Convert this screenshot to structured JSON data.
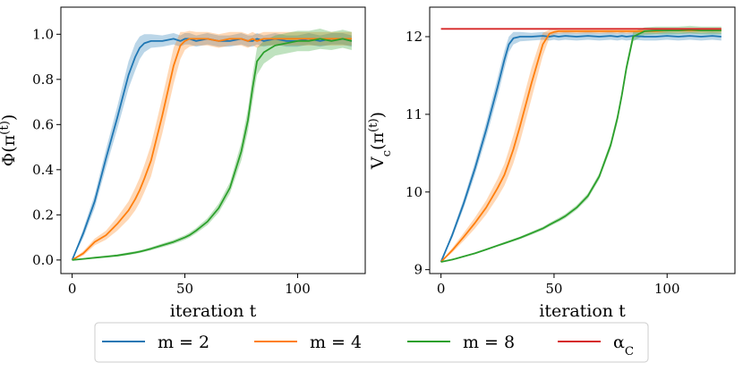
{
  "chart_data": [
    {
      "type": "line",
      "xlabel": "iteration t",
      "ylabel": "Φ(π^(t))",
      "xlim": [
        -5,
        130
      ],
      "ylim": [
        -0.06,
        1.12
      ],
      "xticks": [
        0,
        50,
        100
      ],
      "yticks": [
        0.0,
        0.2,
        0.4,
        0.6,
        0.8,
        1.0
      ],
      "ytick_labels": [
        "0.0",
        "0.2",
        "0.4",
        "0.6",
        "0.8",
        "1.0"
      ],
      "x": [
        0,
        5,
        10,
        15,
        20,
        25,
        28,
        30,
        32,
        35,
        40,
        45,
        48,
        50,
        52,
        55,
        60,
        65,
        70,
        75,
        78,
        80,
        82,
        85,
        90,
        95,
        100,
        105,
        110,
        115,
        120,
        124
      ],
      "series": [
        {
          "name": "m = 2",
          "color": "#1f77b4",
          "values": [
            0.0,
            0.12,
            0.26,
            0.45,
            0.63,
            0.82,
            0.9,
            0.94,
            0.96,
            0.97,
            0.97,
            0.98,
            0.97,
            0.98,
            0.98,
            0.97,
            0.98,
            0.97,
            0.97,
            0.98,
            0.97,
            0.97,
            0.98,
            0.97,
            0.98,
            0.97,
            0.97,
            0.98,
            0.97,
            0.98,
            0.98,
            0.97
          ],
          "band": [
            0.0,
            0.02,
            0.03,
            0.04,
            0.05,
            0.06,
            0.06,
            0.05,
            0.04,
            0.03,
            0.025,
            0.025,
            0.025,
            0.025,
            0.025,
            0.025,
            0.025,
            0.025,
            0.025,
            0.025,
            0.025,
            0.025,
            0.025,
            0.025,
            0.025,
            0.025,
            0.025,
            0.025,
            0.025,
            0.025,
            0.025,
            0.025
          ]
        },
        {
          "name": "m = 4",
          "color": "#ff7f0e",
          "values": [
            0.0,
            0.03,
            0.08,
            0.11,
            0.16,
            0.22,
            0.27,
            0.31,
            0.36,
            0.44,
            0.64,
            0.86,
            0.95,
            0.97,
            0.98,
            0.98,
            0.98,
            0.97,
            0.98,
            0.98,
            0.97,
            0.98,
            0.97,
            0.98,
            0.98,
            0.98,
            0.98,
            0.98,
            0.98,
            0.98,
            0.98,
            0.98
          ],
          "band": [
            0.0,
            0.01,
            0.015,
            0.02,
            0.03,
            0.04,
            0.05,
            0.055,
            0.06,
            0.07,
            0.08,
            0.08,
            0.06,
            0.04,
            0.035,
            0.03,
            0.03,
            0.03,
            0.03,
            0.03,
            0.03,
            0.03,
            0.03,
            0.03,
            0.03,
            0.03,
            0.03,
            0.03,
            0.03,
            0.03,
            0.03,
            0.03
          ]
        },
        {
          "name": "m = 8",
          "color": "#2ca02c",
          "values": [
            0.0,
            0.005,
            0.01,
            0.015,
            0.02,
            0.028,
            0.033,
            0.037,
            0.042,
            0.05,
            0.065,
            0.08,
            0.092,
            0.1,
            0.11,
            0.13,
            0.17,
            0.23,
            0.32,
            0.48,
            0.62,
            0.76,
            0.88,
            0.92,
            0.95,
            0.96,
            0.97,
            0.97,
            0.98,
            0.97,
            0.98,
            0.97
          ],
          "band": [
            0.0,
            0.003,
            0.004,
            0.005,
            0.005,
            0.006,
            0.006,
            0.006,
            0.006,
            0.007,
            0.008,
            0.009,
            0.01,
            0.01,
            0.011,
            0.012,
            0.015,
            0.02,
            0.025,
            0.04,
            0.05,
            0.06,
            0.06,
            0.05,
            0.045,
            0.045,
            0.045,
            0.045,
            0.045,
            0.04,
            0.04,
            0.04
          ]
        }
      ]
    },
    {
      "type": "line",
      "xlabel": "iteration t",
      "ylabel": "V_c(π^(t))",
      "xlim": [
        -5,
        130
      ],
      "ylim": [
        8.95,
        12.38
      ],
      "xticks": [
        0,
        50,
        100
      ],
      "yticks": [
        9,
        10,
        11,
        12
      ],
      "ytick_labels": [
        "9",
        "10",
        "11",
        "12"
      ],
      "x": [
        0,
        5,
        10,
        15,
        20,
        25,
        28,
        30,
        32,
        35,
        40,
        45,
        48,
        50,
        52,
        55,
        60,
        65,
        70,
        75,
        78,
        80,
        82,
        85,
        90,
        95,
        100,
        105,
        110,
        115,
        120,
        124
      ],
      "series": [
        {
          "name": "m = 2",
          "color": "#1f77b4",
          "values": [
            9.1,
            9.45,
            9.85,
            10.3,
            10.8,
            11.35,
            11.7,
            11.9,
            11.98,
            12.0,
            12.0,
            12.01,
            12.0,
            12.01,
            12.0,
            12.01,
            12.0,
            12.01,
            12.0,
            12.01,
            12.0,
            12.01,
            12.0,
            12.01,
            12.0,
            12.0,
            12.01,
            12.0,
            12.01,
            12.0,
            12.01,
            12.0
          ],
          "band": [
            0.0,
            0.04,
            0.06,
            0.08,
            0.1,
            0.12,
            0.12,
            0.1,
            0.08,
            0.06,
            0.05,
            0.05,
            0.05,
            0.05,
            0.05,
            0.05,
            0.05,
            0.05,
            0.05,
            0.05,
            0.05,
            0.05,
            0.05,
            0.05,
            0.05,
            0.05,
            0.05,
            0.05,
            0.05,
            0.05,
            0.05,
            0.05
          ]
        },
        {
          "name": "m = 4",
          "color": "#ff7f0e",
          "values": [
            9.1,
            9.25,
            9.42,
            9.6,
            9.8,
            10.05,
            10.22,
            10.38,
            10.55,
            10.85,
            11.4,
            11.9,
            12.04,
            12.06,
            12.07,
            12.07,
            12.07,
            12.07,
            12.07,
            12.07,
            12.07,
            12.07,
            12.07,
            12.07,
            12.07,
            12.07,
            12.08,
            12.08,
            12.08,
            12.08,
            12.08,
            12.08
          ],
          "band": [
            0.0,
            0.03,
            0.05,
            0.07,
            0.09,
            0.12,
            0.14,
            0.16,
            0.18,
            0.2,
            0.2,
            0.15,
            0.05,
            0.03,
            0.03,
            0.03,
            0.03,
            0.03,
            0.03,
            0.03,
            0.03,
            0.03,
            0.03,
            0.03,
            0.03,
            0.03,
            0.03,
            0.03,
            0.03,
            0.03,
            0.03,
            0.03
          ]
        },
        {
          "name": "m = 8",
          "color": "#2ca02c",
          "values": [
            9.1,
            9.13,
            9.17,
            9.21,
            9.26,
            9.31,
            9.34,
            9.36,
            9.38,
            9.41,
            9.47,
            9.53,
            9.58,
            9.61,
            9.64,
            9.69,
            9.8,
            9.95,
            10.2,
            10.6,
            10.95,
            11.25,
            11.6,
            12.0,
            12.07,
            12.08,
            12.08,
            12.08,
            12.09,
            12.08,
            12.08,
            12.08
          ],
          "band": [
            0.0,
            0.01,
            0.01,
            0.01,
            0.012,
            0.014,
            0.015,
            0.015,
            0.016,
            0.017,
            0.02,
            0.022,
            0.024,
            0.025,
            0.026,
            0.028,
            0.03,
            0.035,
            0.04,
            0.05,
            0.06,
            0.06,
            0.06,
            0.06,
            0.05,
            0.05,
            0.05,
            0.05,
            0.05,
            0.05,
            0.05,
            0.05
          ]
        },
        {
          "name": "α_C",
          "color": "#d62728",
          "constant": 12.1
        }
      ]
    }
  ],
  "legend": {
    "placement": "bottom-center",
    "entries": [
      {
        "label": "m = 2",
        "color": "#1f77b4"
      },
      {
        "label": "m = 4",
        "color": "#ff7f0e"
      },
      {
        "label": "m = 8",
        "color": "#2ca02c"
      },
      {
        "label": "α_C",
        "color": "#d62728"
      }
    ]
  }
}
